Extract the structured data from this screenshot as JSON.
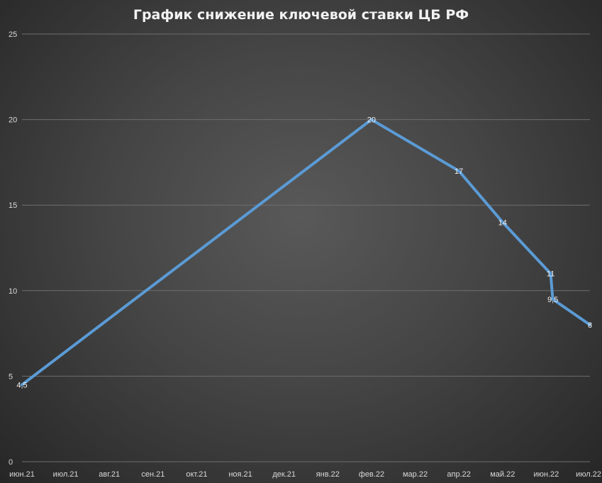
{
  "chart_data": {
    "type": "line",
    "title": "График снижение ключевой ставки ЦБ РФ",
    "xlabel": "",
    "ylabel": "",
    "categories": [
      "июн.21",
      "июл.21",
      "авг.21",
      "сен.21",
      "окт.21",
      "ноя.21",
      "дек.21",
      "янв.22",
      "фев.22",
      "мар.22",
      "апр.22",
      "май.22",
      "июн.22",
      "июл.22"
    ],
    "ylim": [
      0,
      25
    ],
    "yticks": [
      0,
      5,
      10,
      15,
      20,
      25
    ],
    "grid": true,
    "legend": "none",
    "series": [
      {
        "color": "#5b9bd5",
        "points": [
          {
            "x": 0,
            "y": 4.5,
            "label": "4,5"
          },
          {
            "x": 8,
            "y": 20,
            "label": "20"
          },
          {
            "x": 10,
            "y": 17,
            "label": "17"
          },
          {
            "x": 11,
            "y": 14,
            "label": "14"
          },
          {
            "x": 12.1,
            "y": 11,
            "label": "11"
          },
          {
            "x": 12.15,
            "y": 9.5,
            "label": "9,5"
          },
          {
            "x": 13,
            "y": 8,
            "label": "8"
          }
        ]
      }
    ]
  }
}
